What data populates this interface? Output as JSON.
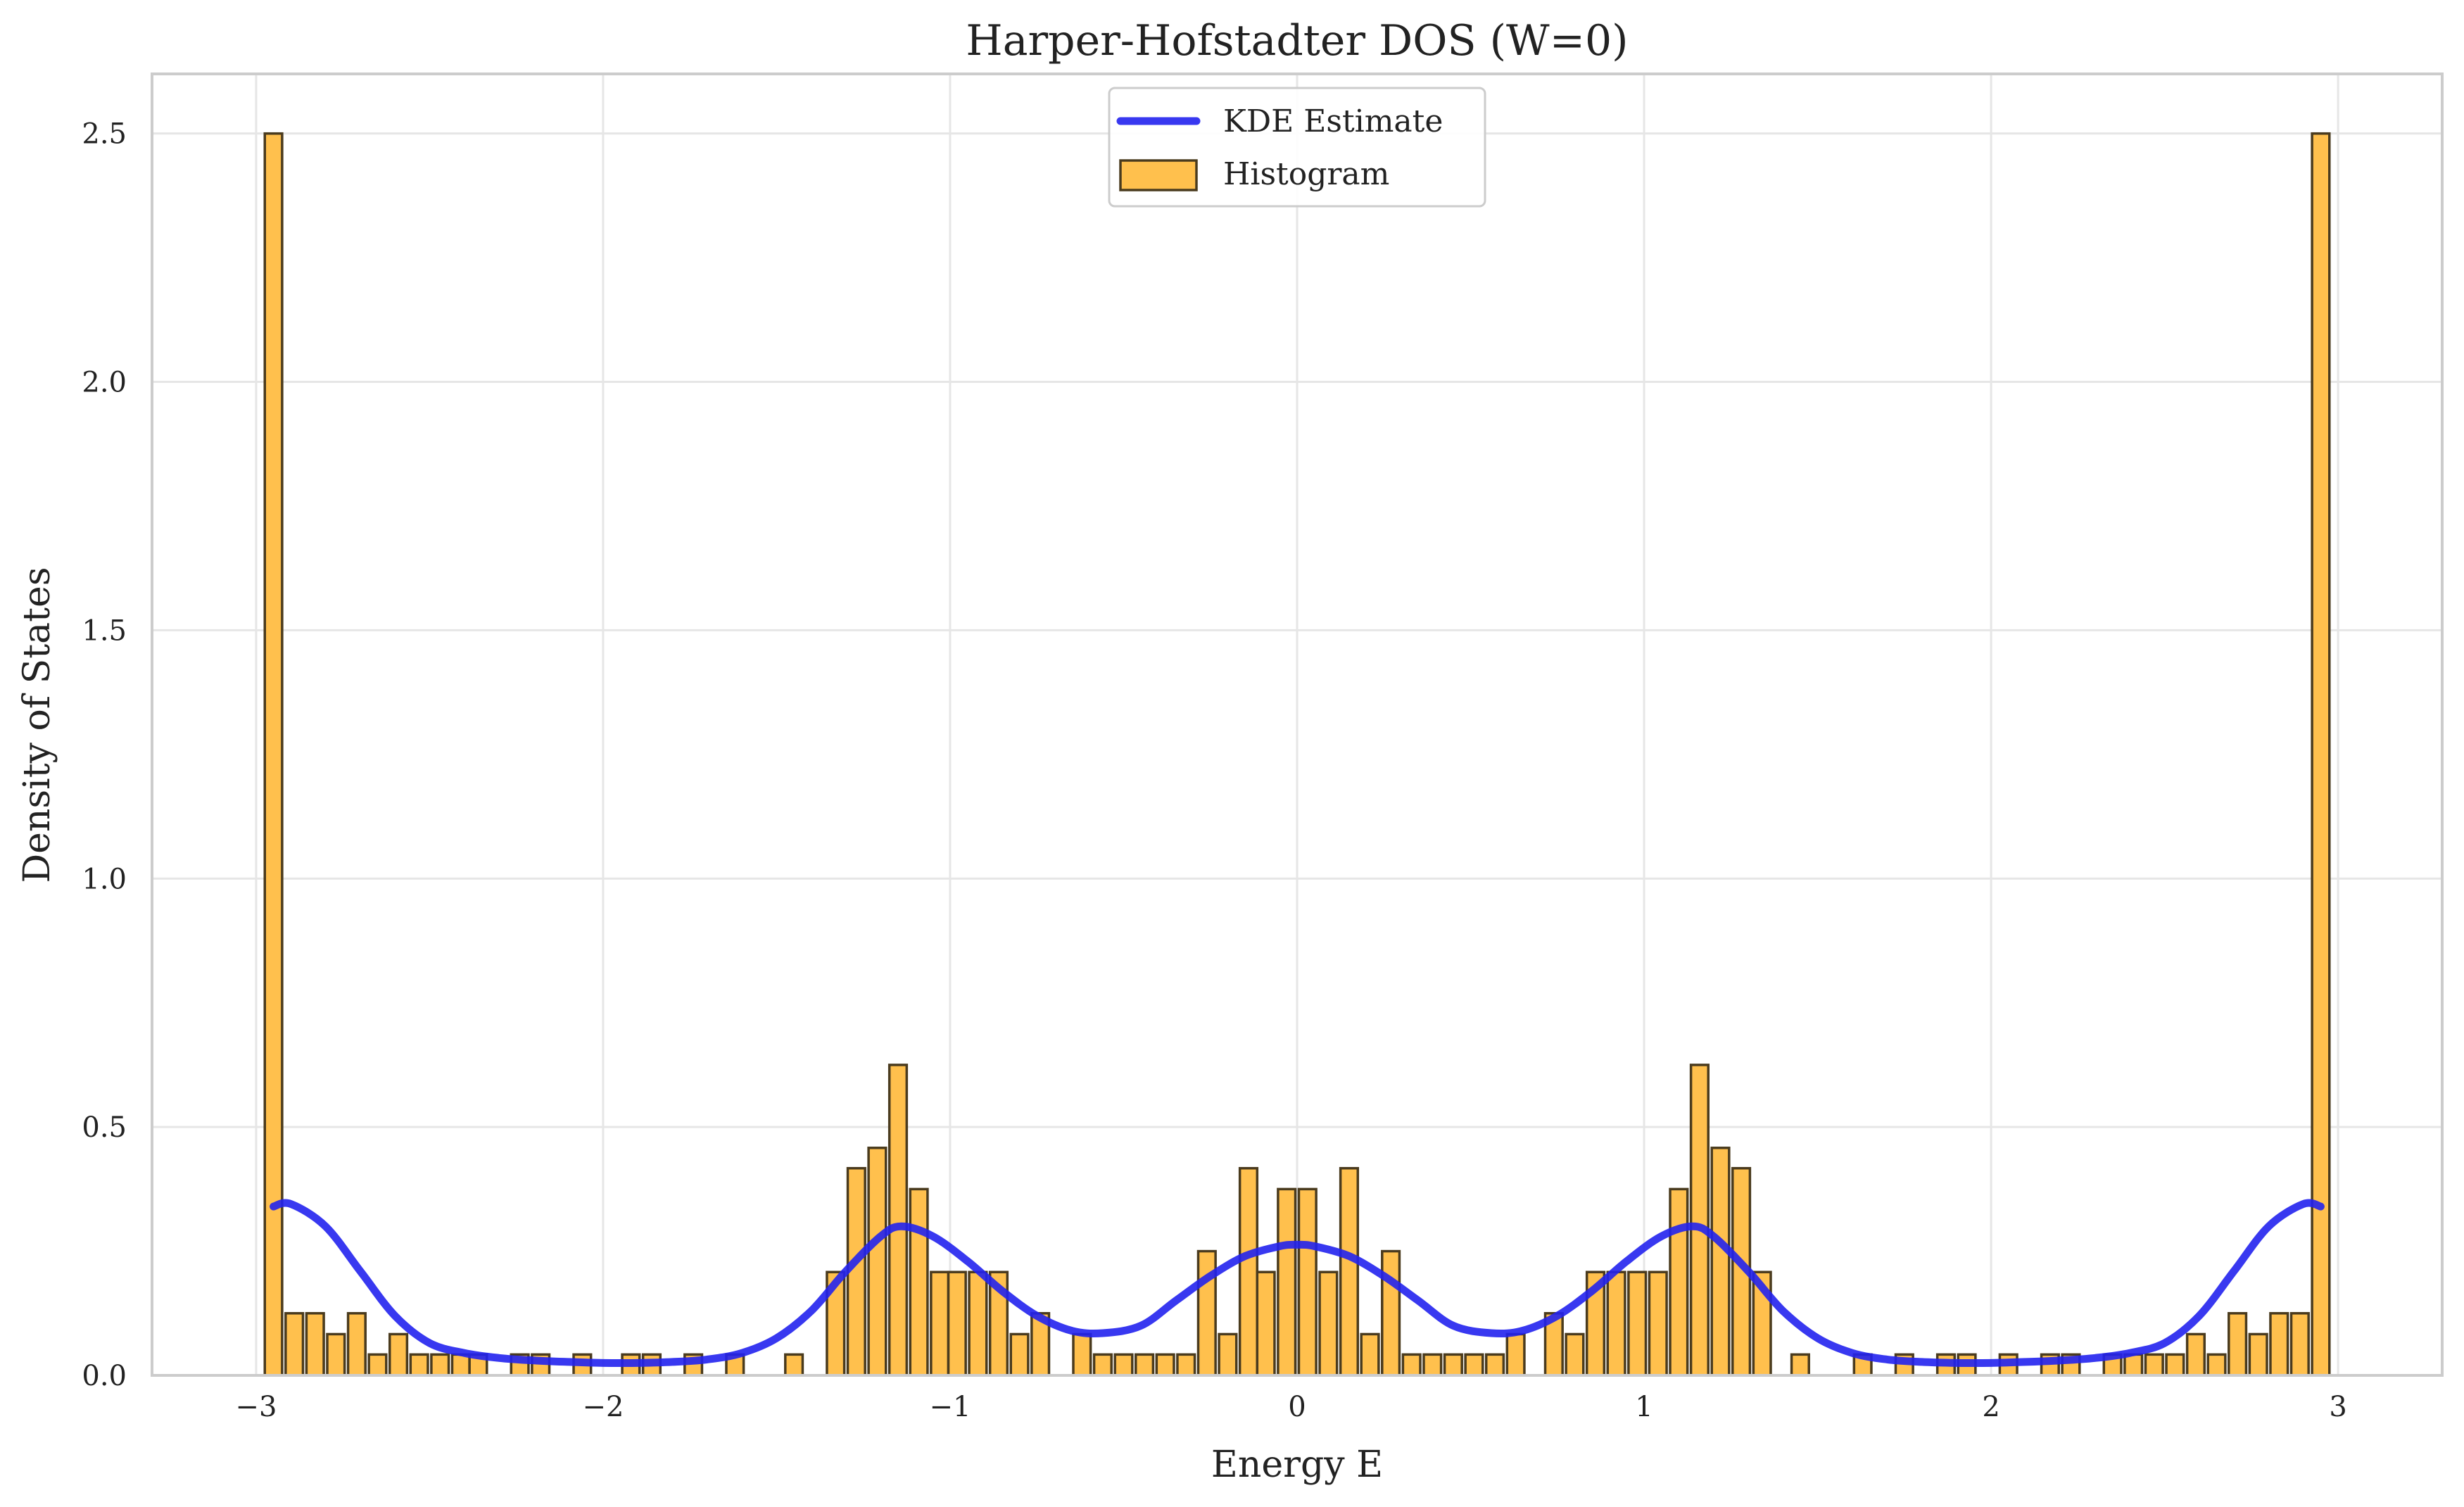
{
  "chart_data": {
    "type": "bar",
    "title": "Harper-Hofstadter DOS (W=0)",
    "xlabel": "Energy E",
    "ylabel": "Density of States",
    "xlim": [
      -3.3,
      3.3
    ],
    "ylim": [
      0,
      2.62
    ],
    "xticks": [
      -3,
      -2,
      -1,
      0,
      1,
      2,
      3
    ],
    "xtick_labels": [
      "−3",
      "−2",
      "−1",
      "0",
      "1",
      "2",
      "3"
    ],
    "yticks": [
      0,
      0.5,
      1.0,
      1.5,
      2.0,
      2.5
    ],
    "ytick_labels": [
      "0.0",
      "0.5",
      "1.0",
      "1.5",
      "2.0",
      "2.5"
    ],
    "grid": true,
    "legend_position": "top-center",
    "colors": {
      "histogram": "#ffc04d",
      "kde": "#2222ee",
      "edge": "#4a3b1e"
    },
    "series": [
      {
        "name": "KDE Estimate",
        "kind": "line",
        "x": [
          -2.95,
          -2.9,
          -2.8,
          -2.7,
          -2.6,
          -2.5,
          -2.4,
          -2.3,
          -2.2,
          -2.1,
          -2.0,
          -1.9,
          -1.8,
          -1.7,
          -1.6,
          -1.5,
          -1.4,
          -1.3,
          -1.2,
          -1.14,
          -1.05,
          -0.95,
          -0.85,
          -0.75,
          -0.65,
          -0.56,
          -0.45,
          -0.35,
          -0.25,
          -0.15,
          -0.05,
          0.0,
          0.05,
          0.15,
          0.25,
          0.35,
          0.45,
          0.56,
          0.65,
          0.75,
          0.85,
          0.95,
          1.05,
          1.14,
          1.2,
          1.3,
          1.4,
          1.5,
          1.6,
          1.7,
          1.8,
          1.9,
          2.0,
          2.1,
          2.2,
          2.3,
          2.4,
          2.5,
          2.6,
          2.7,
          2.8,
          2.9,
          2.95
        ],
        "y": [
          0.34,
          0.345,
          0.3,
          0.21,
          0.12,
          0.065,
          0.045,
          0.035,
          0.03,
          0.027,
          0.025,
          0.025,
          0.027,
          0.032,
          0.045,
          0.075,
          0.13,
          0.21,
          0.28,
          0.3,
          0.28,
          0.23,
          0.17,
          0.12,
          0.09,
          0.085,
          0.1,
          0.15,
          0.2,
          0.24,
          0.26,
          0.263,
          0.26,
          0.24,
          0.2,
          0.15,
          0.1,
          0.085,
          0.09,
          0.12,
          0.17,
          0.23,
          0.28,
          0.3,
          0.28,
          0.21,
          0.13,
          0.075,
          0.045,
          0.032,
          0.027,
          0.025,
          0.025,
          0.027,
          0.03,
          0.035,
          0.045,
          0.065,
          0.12,
          0.21,
          0.3,
          0.345,
          0.34
        ]
      },
      {
        "name": "Histogram",
        "kind": "bar",
        "bin_width": 0.0595,
        "x": [
          -2.95,
          -2.89,
          -2.83,
          -2.77,
          -2.71,
          -2.65,
          -2.59,
          -2.53,
          -2.47,
          -2.41,
          -2.36,
          -2.24,
          -2.18,
          -2.06,
          -1.92,
          -1.86,
          -1.74,
          -1.62,
          -1.45,
          -1.33,
          -1.27,
          -1.21,
          -1.15,
          -1.09,
          -1.03,
          -0.98,
          -0.92,
          -0.86,
          -0.8,
          -0.74,
          -0.62,
          -0.56,
          -0.5,
          -0.44,
          -0.38,
          -0.32,
          -0.26,
          -0.2,
          -0.14,
          -0.09,
          -0.03,
          0.03,
          0.09,
          0.15,
          0.21,
          0.27,
          0.33,
          0.39,
          0.45,
          0.51,
          0.57,
          0.63,
          0.74,
          0.8,
          0.86,
          0.92,
          0.98,
          1.04,
          1.1,
          1.16,
          1.22,
          1.28,
          1.34,
          1.45,
          1.63,
          1.75,
          1.87,
          1.93,
          2.05,
          2.17,
          2.23,
          2.35,
          2.41,
          2.47,
          2.53,
          2.59,
          2.65,
          2.71,
          2.77,
          2.83,
          2.89,
          2.95
        ],
        "values": [
          2.5,
          0.125,
          0.125,
          0.083,
          0.125,
          0.042,
          0.083,
          0.042,
          0.042,
          0.042,
          0.042,
          0.042,
          0.042,
          0.042,
          0.042,
          0.042,
          0.042,
          0.042,
          0.042,
          0.208,
          0.417,
          0.458,
          0.625,
          0.375,
          0.208,
          0.208,
          0.208,
          0.208,
          0.083,
          0.125,
          0.083,
          0.042,
          0.042,
          0.042,
          0.042,
          0.042,
          0.25,
          0.083,
          0.417,
          0.208,
          0.375,
          0.375,
          0.208,
          0.417,
          0.083,
          0.25,
          0.042,
          0.042,
          0.042,
          0.042,
          0.042,
          0.083,
          0.125,
          0.083,
          0.208,
          0.208,
          0.208,
          0.208,
          0.375,
          0.625,
          0.458,
          0.417,
          0.208,
          0.042,
          0.042,
          0.042,
          0.042,
          0.042,
          0.042,
          0.042,
          0.042,
          0.042,
          0.042,
          0.042,
          0.042,
          0.083,
          0.042,
          0.125,
          0.083,
          0.125,
          0.125,
          2.5
        ]
      }
    ]
  }
}
